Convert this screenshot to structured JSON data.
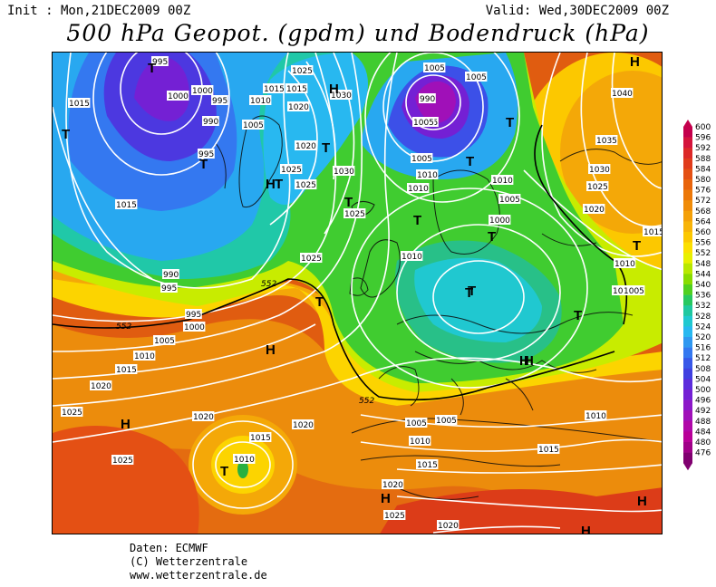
{
  "header": {
    "init": "Init : Mon,21DEC2009 00Z",
    "valid": "Valid: Wed,30DEC2009 00Z",
    "title": "500 hPa Geopot. (gpdm) und Bodendruck (hPa)"
  },
  "credits": {
    "line1": "Daten: ECMWF",
    "line2": "(C) Wetterzentrale",
    "line3": "www.wetterzentrale.de"
  },
  "legend": {
    "levels": [
      600,
      596,
      592,
      588,
      584,
      580,
      576,
      572,
      568,
      564,
      560,
      556,
      552,
      548,
      544,
      540,
      536,
      532,
      528,
      524,
      520,
      516,
      512,
      508,
      504,
      500,
      496,
      492,
      488,
      484,
      480,
      476
    ],
    "colors": [
      "#c4004c",
      "#d4143c",
      "#dc2828",
      "#e03c1c",
      "#e45014",
      "#e8640c",
      "#ec7808",
      "#f08c08",
      "#f4a008",
      "#f8b408",
      "#fcc800",
      "#fce000",
      "#e8f000",
      "#b8e800",
      "#88dc00",
      "#50d020",
      "#28c860",
      "#20c8a0",
      "#20c8d0",
      "#28b8f0",
      "#3098f0",
      "#3478f0",
      "#3858e8",
      "#4040e0",
      "#5c2cdc",
      "#7420d4",
      "#8c18c8",
      "#a010b8",
      "#b008a8",
      "#b80098",
      "#a00088",
      "#800070"
    ]
  },
  "map": {
    "pressure_labels": [
      "995",
      "1000",
      "1000",
      "995",
      "990",
      "995",
      "1005",
      "1010",
      "1015",
      "1015",
      "1025",
      "1015",
      "1020",
      "1025",
      "1030",
      "1025",
      "1030",
      "1020",
      "1025",
      "1025",
      "1005",
      "990",
      "995",
      "1005",
      "1005",
      "1010",
      "1005",
      "1010",
      "1010",
      "1005",
      "1000",
      "1010",
      "1040",
      "1035",
      "1030",
      "1025",
      "1020",
      "1015",
      "1010",
      "1010",
      "1005",
      "1015",
      "990",
      "995",
      "995",
      "1000",
      "1005",
      "1010",
      "1015",
      "1020",
      "1025",
      "1025",
      "1020",
      "1015",
      "1010",
      "1020",
      "1005",
      "1005",
      "1010",
      "1015",
      "1015",
      "1010",
      "1020",
      "1025",
      "1020"
    ],
    "geopotential_labels": [
      "552",
      "552",
      "552"
    ],
    "centers": [
      "T",
      "T",
      "T",
      "H",
      "H",
      "T",
      "T",
      "T",
      "T",
      "T",
      "T",
      "T",
      "T",
      "T",
      "H",
      "T",
      "H",
      "T",
      "T",
      "H",
      "H",
      "H",
      "T",
      "H",
      "H",
      "H"
    ]
  }
}
